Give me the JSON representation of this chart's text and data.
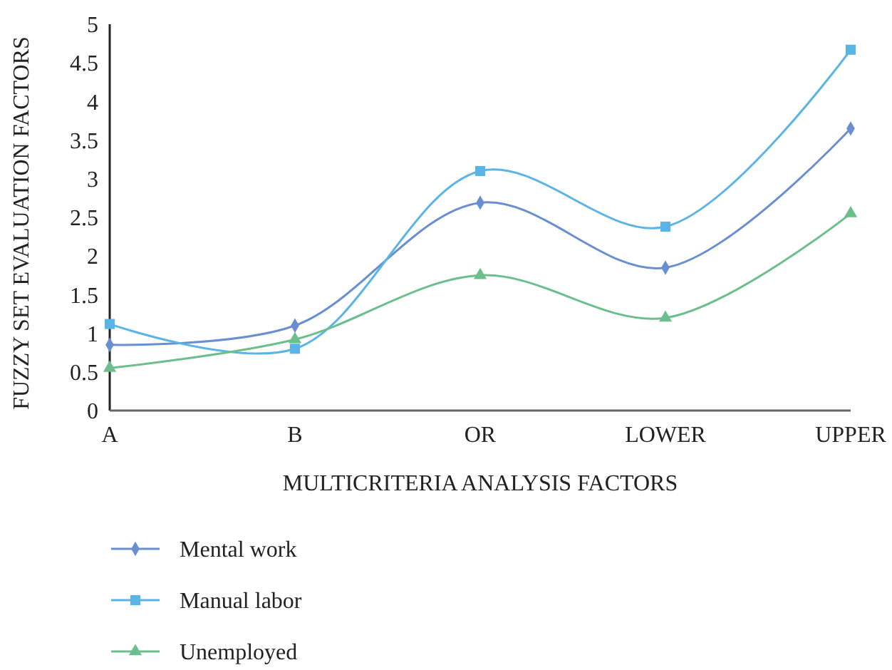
{
  "chart_data": {
    "type": "line",
    "xlabel": "MULTICRITERIA ANALYSIS FACTORS",
    "ylabel": "FUZZY SET EVALUATION FACTORS",
    "categories": [
      "A",
      "B",
      "OR",
      "LOWER",
      "UPPER"
    ],
    "series": [
      {
        "name": "Mental work",
        "color": "#6a8fd0",
        "marker": "diamond",
        "values": [
          0.85,
          1.1,
          2.69,
          1.85,
          3.65
        ]
      },
      {
        "name": "Manual labor",
        "color": "#5ab4e5",
        "marker": "square",
        "values": [
          1.12,
          0.8,
          3.1,
          2.38,
          4.67
        ]
      },
      {
        "name": "Unemployed",
        "color": "#6cbf8c",
        "marker": "triangle",
        "values": [
          0.55,
          0.92,
          1.75,
          1.2,
          2.55
        ]
      }
    ],
    "ylim": [
      0,
      5
    ],
    "yticks": [
      0,
      0.5,
      1,
      1.5,
      2,
      2.5,
      3,
      3.5,
      4,
      4.5,
      5
    ],
    "legend": "bottom left",
    "line_style": "solid",
    "grid": false
  }
}
